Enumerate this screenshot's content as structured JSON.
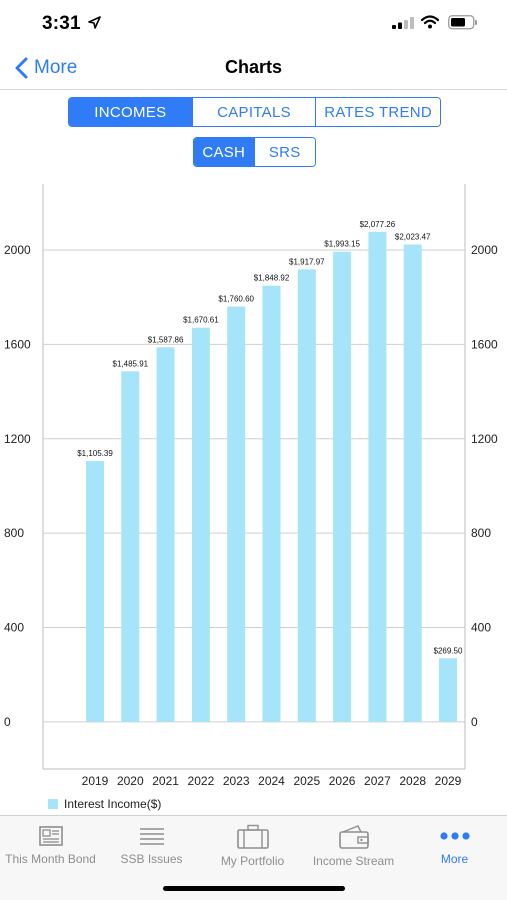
{
  "status": {
    "time": "3:31"
  },
  "nav": {
    "back_label": "More",
    "title": "Charts"
  },
  "segments_main": [
    {
      "label": "INCOMES",
      "active": true
    },
    {
      "label": "CAPITALS",
      "active": false
    },
    {
      "label": "RATES TREND",
      "active": false
    }
  ],
  "segments_sub": [
    {
      "label": "CASH",
      "active": true
    },
    {
      "label": "SRS",
      "active": false
    }
  ],
  "colors": {
    "accent": "#2f7cf6",
    "bar": "#a6e5f9",
    "grid": "#cfcfcf"
  },
  "chart_data": {
    "type": "bar",
    "categories": [
      "2019",
      "2020",
      "2021",
      "2022",
      "2023",
      "2024",
      "2025",
      "2026",
      "2027",
      "2028",
      "2029"
    ],
    "series": [
      {
        "name": "Interest Income($)",
        "values": [
          1105.39,
          1485.91,
          1587.86,
          1670.61,
          1760.6,
          1848.92,
          1917.97,
          1993.15,
          2077.26,
          2023.47,
          269.5
        ],
        "labels": [
          "$1,105.39",
          "$1,485.91",
          "$1,587.86",
          "$1,670.61",
          "$1,760.60",
          "$1,848.92",
          "$1,917.97",
          "$1,993.15",
          "$2,077.26",
          "$2,023.47",
          "$269.50"
        ]
      }
    ],
    "yticks": [
      "0",
      "400",
      "800",
      "1200",
      "1600",
      "2000"
    ],
    "ylim": [
      -200,
      2280
    ],
    "grid": true,
    "legend": "bottom-left",
    "axes": "left-and-right"
  },
  "tabs": [
    {
      "label": "This Month Bond",
      "icon": "newspaper-icon",
      "active": false
    },
    {
      "label": "SSB Issues",
      "icon": "list-lines-icon",
      "active": false
    },
    {
      "label": "My Portfolio",
      "icon": "briefcase-icon",
      "active": false
    },
    {
      "label": "Income Stream",
      "icon": "wallet-icon",
      "active": false
    },
    {
      "label": "More",
      "icon": "more-dots-icon",
      "active": true
    }
  ]
}
